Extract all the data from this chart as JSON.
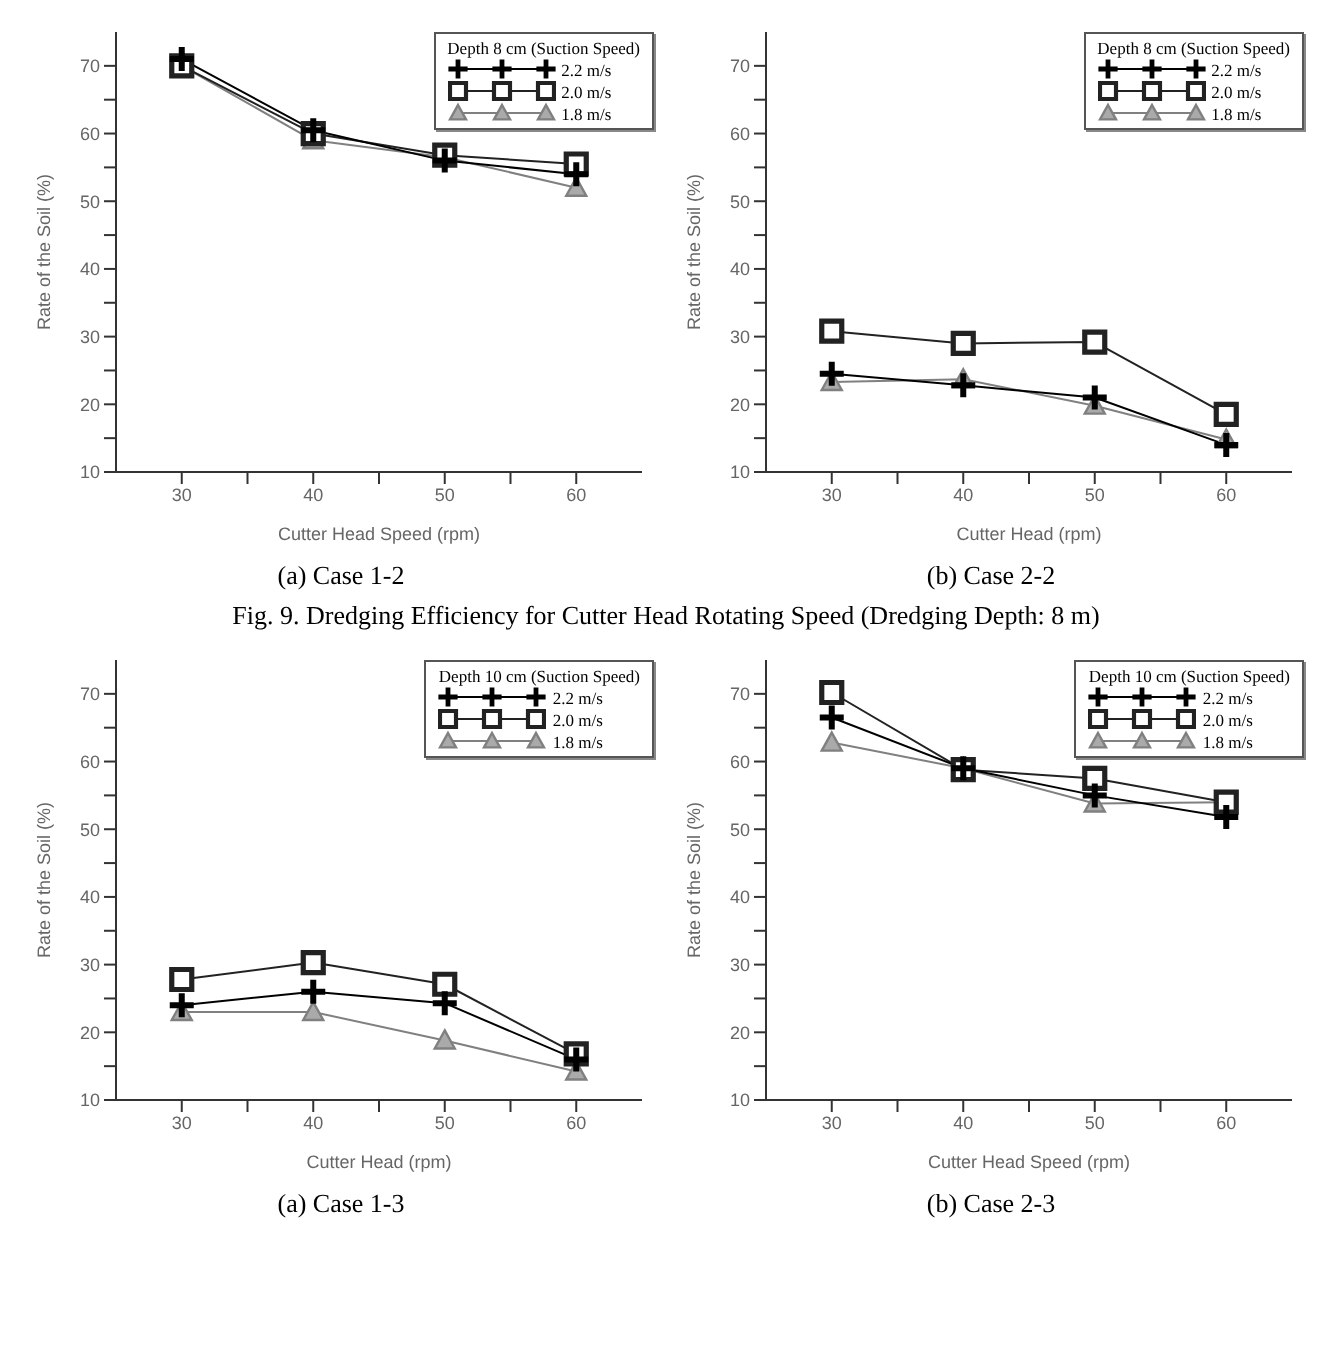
{
  "chart_data": [
    {
      "type": "line",
      "subtitle": "(a)  Case 1-2",
      "xlabel": "Cutter Head Speed (rpm)",
      "ylabel": "Rate of the Soil (%)",
      "legend_title": "Depth 8 cm (Suction Speed)",
      "legend": "top right",
      "grid": false,
      "x": [
        30,
        40,
        50,
        60
      ],
      "xlim": [
        25,
        65
      ],
      "xticks": [
        30,
        {
          "value": 35,
          "label": null
        },
        40,
        {
          "value": 45,
          "label": null
        },
        50,
        {
          "value": 55,
          "label": null
        },
        60
      ],
      "ylim": [
        10,
        75
      ],
      "yticks": [
        10,
        {
          "value": 15,
          "label": null
        },
        20,
        {
          "value": 25,
          "label": null
        },
        30,
        {
          "value": 35,
          "label": null
        },
        40,
        {
          "value": 45,
          "label": null
        },
        50,
        {
          "value": 55,
          "label": null
        },
        60,
        {
          "value": 65,
          "label": null
        },
        70
      ],
      "series": [
        {
          "name": "2.2 m/s",
          "color": "#000000",
          "marker": "cross",
          "values": [
            71,
            60.5,
            56,
            54
          ]
        },
        {
          "name": "2.0 m/s",
          "color": "#222222",
          "marker": "square",
          "values": [
            70,
            60,
            56.8,
            55.5
          ]
        },
        {
          "name": "1.8 m/s",
          "color": "#808080",
          "marker": "triangle",
          "values": [
            70,
            59,
            56.5,
            52
          ]
        }
      ]
    },
    {
      "type": "line",
      "subtitle": "(b)  Case 2-2",
      "xlabel": "Cutter Head (rpm)",
      "ylabel": "Rate of the Soil (%)",
      "legend_title": "Depth 8 cm (Suction Speed)",
      "legend": "top right",
      "grid": false,
      "annotations": [
        "Fig. 9. Dredging Efficiency for Cutter Head Rotating Speed (Dredging Depth: 8 m)"
      ],
      "x": [
        30,
        40,
        50,
        60
      ],
      "xlim": [
        25,
        65
      ],
      "xticks": [
        30,
        {
          "value": 35,
          "label": null
        },
        40,
        {
          "value": 45,
          "label": null
        },
        50,
        {
          "value": 55,
          "label": null
        },
        60
      ],
      "ylim": [
        10,
        75
      ],
      "yticks": [
        10,
        {
          "value": 15,
          "label": null
        },
        20,
        {
          "value": 25,
          "label": null
        },
        30,
        {
          "value": 35,
          "label": null
        },
        40,
        {
          "value": 45,
          "label": null
        },
        50,
        {
          "value": 55,
          "label": null
        },
        60,
        {
          "value": 65,
          "label": null
        },
        70
      ],
      "series": [
        {
          "name": "2.2 m/s",
          "color": "#000000",
          "marker": "cross",
          "values": [
            24.5,
            22.8,
            21,
            14
          ]
        },
        {
          "name": "2.0 m/s",
          "color": "#222222",
          "marker": "square",
          "values": [
            30.8,
            29,
            29.2,
            18.5
          ]
        },
        {
          "name": "1.8 m/s",
          "color": "#808080",
          "marker": "triangle",
          "values": [
            23.3,
            23.7,
            19.8,
            14.8
          ]
        }
      ]
    },
    {
      "type": "line",
      "subtitle": "(a)  Case 1-3",
      "xlabel": "Cutter Head (rpm)",
      "ylabel": "Rate of the Soil (%)",
      "legend_title": "Depth 10 cm (Suction Speed)",
      "legend": "top right",
      "grid": false,
      "x": [
        30,
        40,
        50,
        60
      ],
      "xlim": [
        25,
        65
      ],
      "xticks": [
        30,
        {
          "value": 35,
          "label": null
        },
        40,
        {
          "value": 45,
          "label": null
        },
        50,
        {
          "value": 55,
          "label": null
        },
        60
      ],
      "ylim": [
        10,
        75
      ],
      "yticks": [
        10,
        {
          "value": 15,
          "label": null
        },
        20,
        {
          "value": 25,
          "label": null
        },
        30,
        {
          "value": 35,
          "label": null
        },
        40,
        {
          "value": 45,
          "label": null
        },
        50,
        {
          "value": 55,
          "label": null
        },
        60,
        {
          "value": 65,
          "label": null
        },
        70
      ],
      "series": [
        {
          "name": "2.2 m/s",
          "color": "#000000",
          "marker": "cross",
          "values": [
            24,
            26,
            24.3,
            16
          ]
        },
        {
          "name": "2.0 m/s",
          "color": "#222222",
          "marker": "square",
          "values": [
            27.8,
            30.3,
            27.1,
            16.8
          ]
        },
        {
          "name": "1.8 m/s",
          "color": "#808080",
          "marker": "triangle",
          "values": [
            23,
            23,
            18.8,
            14.2
          ]
        }
      ]
    },
    {
      "type": "line",
      "subtitle": "(b)  Case 2-3",
      "xlabel": "Cutter Head Speed (rpm)",
      "ylabel": "Rate of the Soil (%)",
      "legend_title": "Depth 10 cm (Suction Speed)",
      "legend": "top right",
      "grid": false,
      "x": [
        30,
        40,
        50,
        60
      ],
      "xlim": [
        25,
        65
      ],
      "xticks": [
        30,
        {
          "value": 35,
          "label": null
        },
        40,
        {
          "value": 45,
          "label": null
        },
        50,
        {
          "value": 55,
          "label": null
        },
        60
      ],
      "ylim": [
        10,
        75
      ],
      "yticks": [
        10,
        {
          "value": 15,
          "label": null
        },
        20,
        {
          "value": 25,
          "label": null
        },
        30,
        {
          "value": 35,
          "label": null
        },
        40,
        {
          "value": 45,
          "label": null
        },
        50,
        {
          "value": 55,
          "label": null
        },
        60,
        {
          "value": 65,
          "label": null
        },
        70
      ],
      "series": [
        {
          "name": "2.2 m/s",
          "color": "#000000",
          "marker": "cross",
          "values": [
            66.5,
            59,
            55,
            51.8
          ]
        },
        {
          "name": "2.0 m/s",
          "color": "#222222",
          "marker": "square",
          "values": [
            70.2,
            58.8,
            57.5,
            54
          ]
        },
        {
          "name": "1.8 m/s",
          "color": "#808080",
          "marker": "triangle",
          "values": [
            62.8,
            59,
            53.8,
            54
          ]
        }
      ]
    }
  ]
}
